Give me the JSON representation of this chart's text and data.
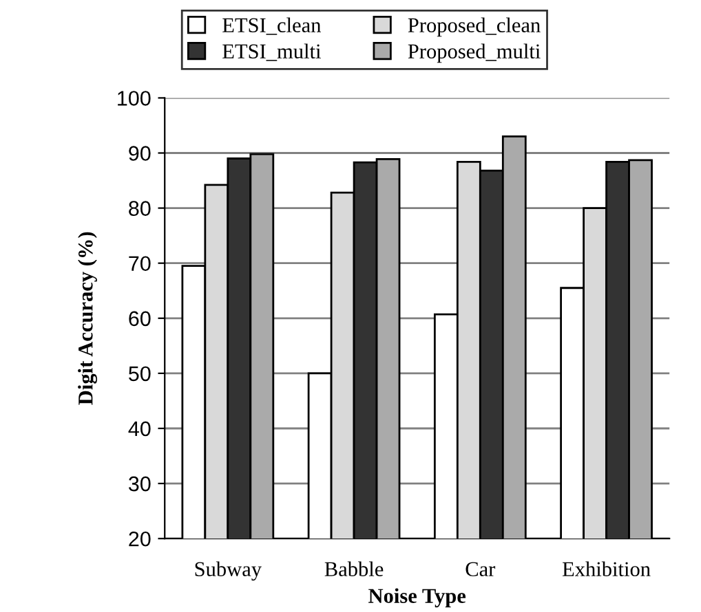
{
  "chart_data": {
    "type": "bar",
    "xlabel": "Noise Type",
    "ylabel": "Digit Accuracy (%)",
    "categories": [
      "Subway",
      "Babble",
      "Car",
      "Exhibition"
    ],
    "series": [
      {
        "name": "ETSI_clean",
        "color": "#ffffff",
        "values": [
          69.5,
          50,
          60.7,
          65.5
        ]
      },
      {
        "name": "Proposed_clean",
        "color": "#d9d9d9",
        "values": [
          84.2,
          82.8,
          88.4,
          80
        ]
      },
      {
        "name": "ETSI_multi",
        "color": "#333333",
        "values": [
          89,
          88.3,
          86.8,
          88.4
        ]
      },
      {
        "name": "Proposed_multi",
        "color": "#aaaaaa",
        "values": [
          89.8,
          88.9,
          93,
          88.7
        ]
      }
    ],
    "ylim": [
      20,
      100
    ],
    "yticks": [
      20,
      30,
      40,
      50,
      60,
      70,
      80,
      90,
      100
    ],
    "grid": "y",
    "legend": "top"
  }
}
